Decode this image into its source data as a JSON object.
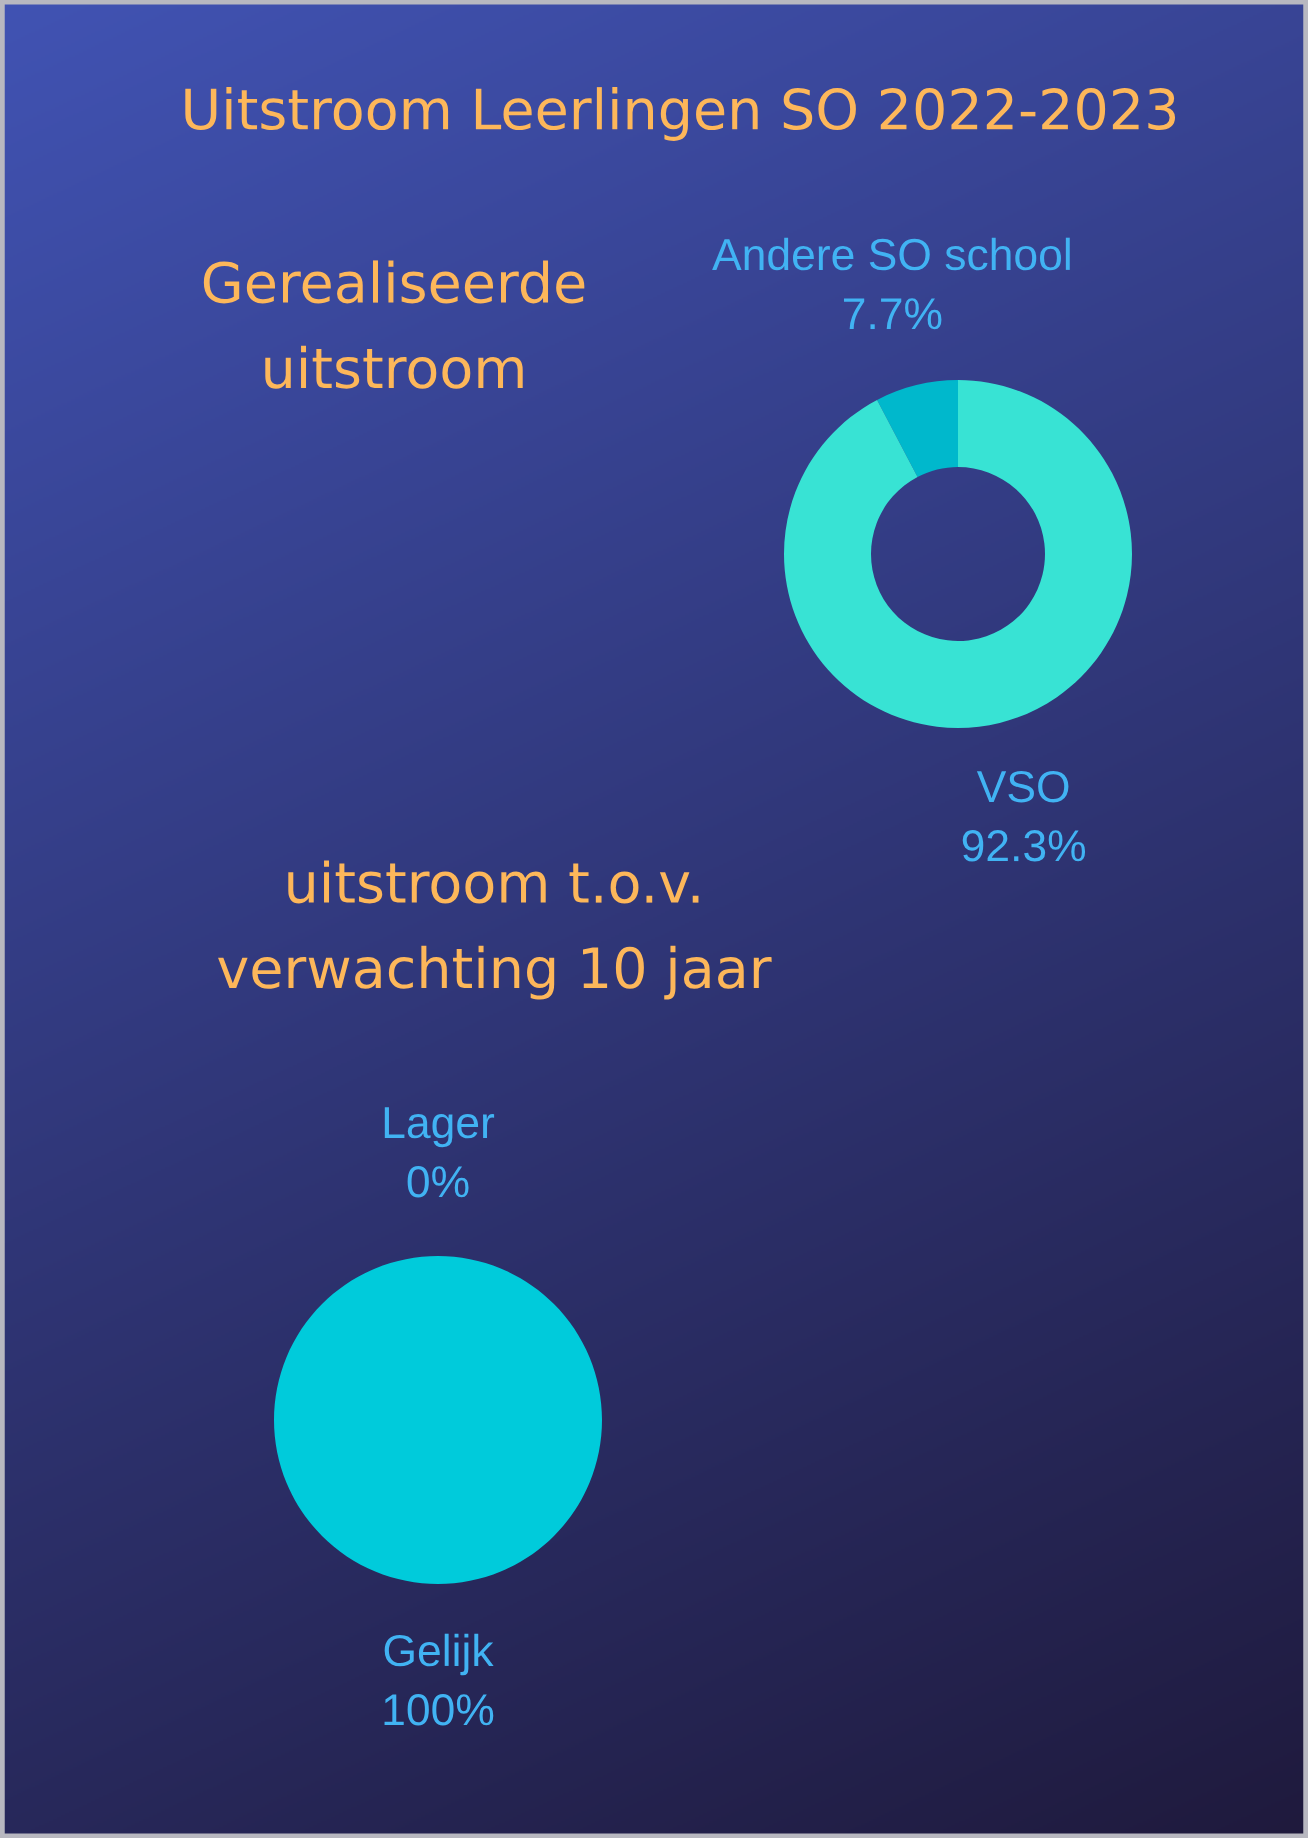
{
  "chart_data": [
    {
      "type": "donut",
      "title": "Uitstroom Leerlingen SO 2022-2023",
      "subtitle": "Gerealiseerde\nuitstroom",
      "categories": [
        "Andere SO school",
        "VSO"
      ],
      "values": [
        7.7,
        92.3
      ],
      "value_labels": [
        "7.7%",
        "92.3%"
      ],
      "colors": [
        "#00b8cc",
        "#38e3d4"
      ]
    },
    {
      "type": "pie",
      "title": "uitstroom t.o.v.\nverwachting 10 jaar",
      "categories": [
        "Lager",
        "Gelijk"
      ],
      "values": [
        0,
        100
      ],
      "value_labels": [
        "0%",
        "100%"
      ],
      "colors": [
        "#38e3d4",
        "#00cbdb"
      ]
    }
  ]
}
